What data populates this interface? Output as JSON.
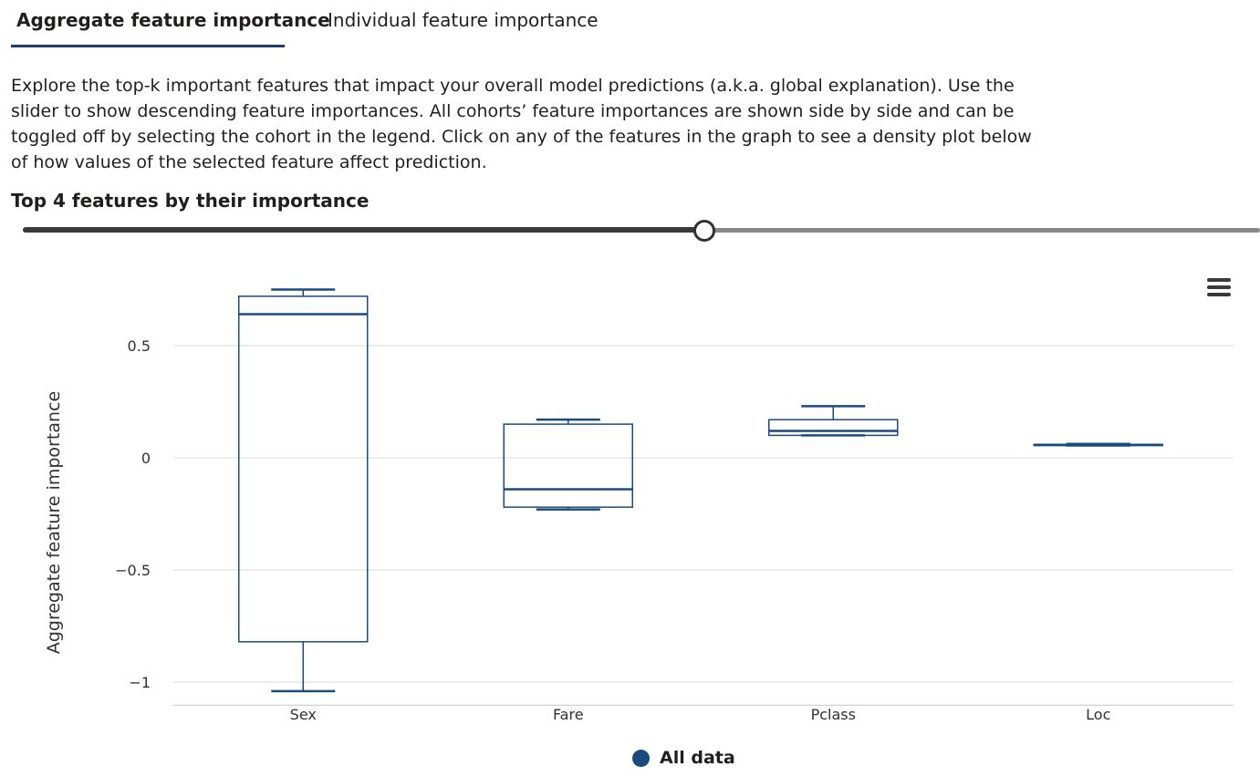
{
  "tabs": [
    {
      "label": "Aggregate feature importance",
      "active": true
    },
    {
      "label": "Individual feature importance",
      "active": false
    }
  ],
  "description": "Explore the top-k important features that impact your overall model predictions (a.k.a. global explanation). Use the slider to show descending feature importances. All cohorts’ feature importances are shown side by side and can be toggled off by selecting the cohort in the legend. Click on any of the features in the graph to see a density plot below of how values of the selected feature affect prediction.",
  "slider": {
    "label": "Top 4 features by their importance",
    "value": 4
  },
  "menu_icon": "hamburger-menu-icon",
  "colors": {
    "series": "#1b4a7e",
    "grid": "#d8d8d8",
    "slider_fill": "#3b3a39",
    "slider_track": "#8a8886",
    "tab_underline": "#1b3d6d"
  },
  "chart_data": {
    "type": "box",
    "title": "",
    "xlabel": "",
    "ylabel": "Aggregate feature importance",
    "categories": [
      "Sex",
      "Fare",
      "Pclass",
      "Loc"
    ],
    "ylim": [
      -1.05,
      0.78
    ],
    "yticks": [
      0.5,
      0,
      -0.5,
      -1
    ],
    "ytick_labels": [
      "0.5",
      "0",
      "−0.5",
      "−1"
    ],
    "grid": true,
    "legend_position": "bottom",
    "series": [
      {
        "name": "All data",
        "boxes": [
          {
            "category": "Sex",
            "min": -1.04,
            "q1": -0.82,
            "median": 0.64,
            "q3": 0.72,
            "max": 0.75
          },
          {
            "category": "Fare",
            "min": -0.23,
            "q1": -0.22,
            "median": -0.14,
            "q3": 0.15,
            "max": 0.17
          },
          {
            "category": "Pclass",
            "min": 0.1,
            "q1": 0.1,
            "median": 0.12,
            "q3": 0.17,
            "max": 0.23
          },
          {
            "category": "Loc",
            "min": 0.055,
            "q1": 0.055,
            "median": 0.057,
            "q3": 0.06,
            "max": 0.062
          }
        ]
      }
    ]
  }
}
